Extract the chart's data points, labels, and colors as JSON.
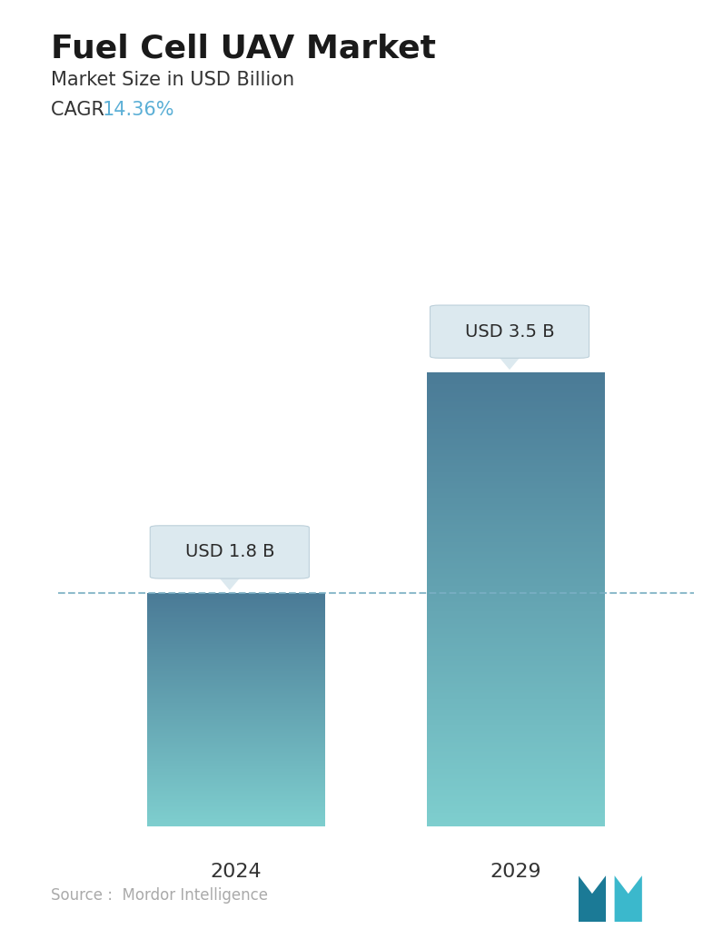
{
  "title": "Fuel Cell UAV Market",
  "subtitle": "Market Size in USD Billion",
  "cagr_label": "CAGR  ",
  "cagr_value": "14.36%",
  "cagr_color": "#5BAFD6",
  "categories": [
    "2024",
    "2029"
  ],
  "values": [
    1.8,
    3.5
  ],
  "labels": [
    "USD 1.8 B",
    "USD 3.5 B"
  ],
  "bar_color_top": "#4A7A96",
  "bar_color_bottom": "#7ECECE",
  "dashed_line_color": "#7AAFC4",
  "dashed_line_y": 1.8,
  "source_text": "Source :  Mordor Intelligence",
  "source_color": "#aaaaaa",
  "background_color": "#ffffff",
  "title_fontsize": 26,
  "subtitle_fontsize": 15,
  "cagr_fontsize": 15,
  "label_fontsize": 14,
  "tick_fontsize": 16,
  "source_fontsize": 12,
  "ylim": [
    0,
    4.2
  ],
  "bar_width": 0.28,
  "x_positions": [
    0.28,
    0.72
  ]
}
